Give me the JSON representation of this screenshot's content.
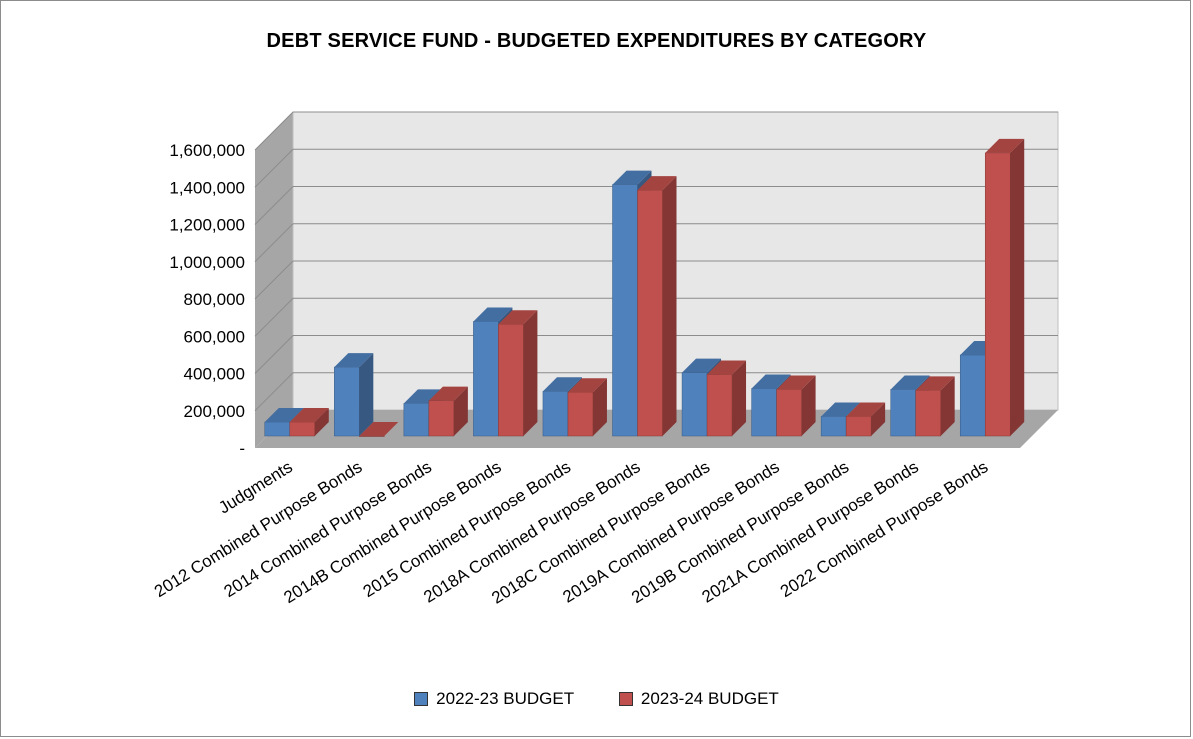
{
  "chart_data": {
    "type": "bar",
    "title": "DEBT SERVICE FUND - BUDGETED EXPENDITURES BY CATEGORY",
    "categories": [
      "Judgments",
      "2012 Combined Purpose Bonds",
      "2014 Combined Purpose Bonds",
      "2014B Combined Purpose Bonds",
      "2015 Combined Purpose Bonds",
      "2018A Combined Purpose Bonds",
      "2018C Combined Purpose Bonds",
      "2019A Combined Purpose Bonds",
      "2019B Combined Purpose Bonds",
      "2021A Combined Purpose Bonds",
      "2022 Combined Purpose Bonds"
    ],
    "series": [
      {
        "name": "2022-23 BUDGET",
        "color": "#4F81BD",
        "values": [
          75000,
          370000,
          175000,
          615000,
          240000,
          1350000,
          340000,
          255000,
          105000,
          250000,
          435000
        ]
      },
      {
        "name": "2023-24 BUDGET",
        "color": "#C0504D",
        "values": [
          75000,
          0,
          190000,
          600000,
          235000,
          1320000,
          330000,
          250000,
          105000,
          245000,
          1520000
        ]
      }
    ],
    "ylim": [
      0,
      1600000
    ],
    "yticks": [
      0,
      200000,
      400000,
      600000,
      800000,
      1000000,
      1200000,
      1400000,
      1600000
    ],
    "ytick_labels": [
      "-",
      "200,000",
      "400,000",
      "600,000",
      "800,000",
      "1,000,000",
      "1,200,000",
      "1,400,000",
      "1,600,000"
    ],
    "grid": true,
    "legend": "bottom"
  }
}
